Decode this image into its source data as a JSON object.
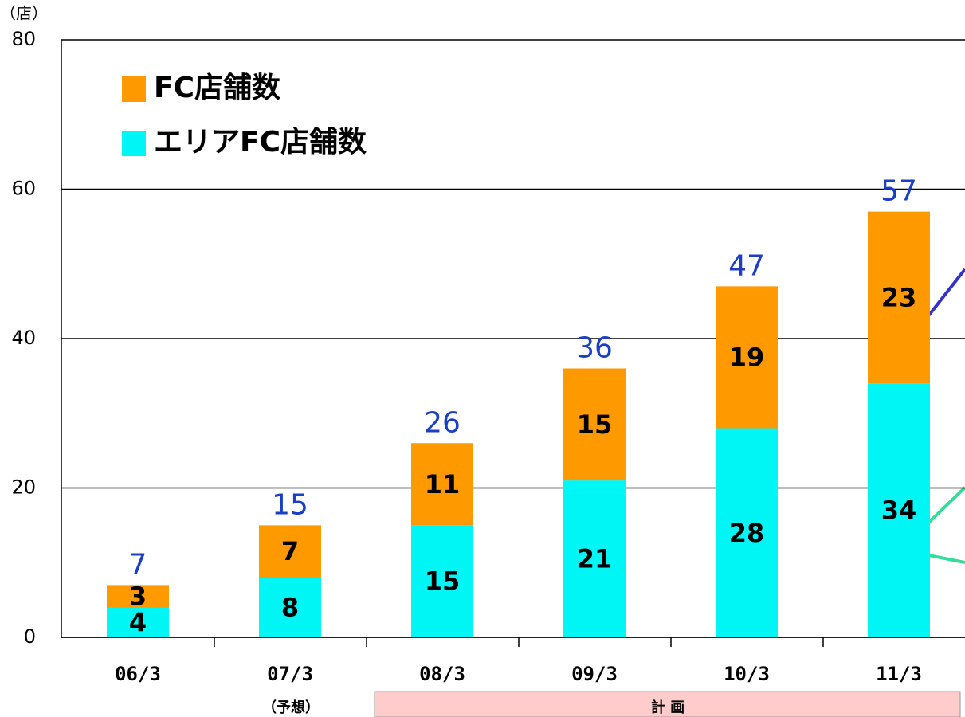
{
  "chart_data": {
    "type": "stacked_bar",
    "y_unit": "（店）",
    "categories": [
      "06/3",
      "07/3",
      "08/3",
      "09/3",
      "10/3",
      "11/3"
    ],
    "series": [
      {
        "name": "エリアFC店舗数",
        "color": "#00f5f5",
        "values": [
          4,
          8,
          15,
          21,
          28,
          34
        ]
      },
      {
        "name": "FC店舗数",
        "color": "#ff9900",
        "values": [
          3,
          7,
          11,
          15,
          19,
          23
        ]
      }
    ],
    "totals": [
      7,
      15,
      26,
      36,
      47,
      57
    ],
    "annotations": [
      "（予想）",
      "計 画"
    ],
    "ylim": [
      0,
      80
    ],
    "yticks": [
      0,
      20,
      40,
      60,
      80
    ],
    "grid": true
  }
}
